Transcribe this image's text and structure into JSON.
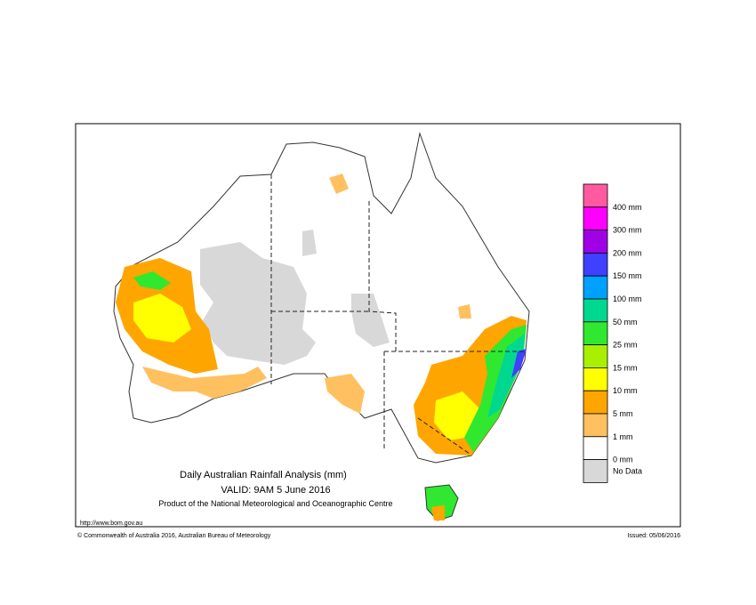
{
  "map": {
    "title": "Daily Australian Rainfall Analysis (mm)",
    "valid": "VALID: 9AM  5 June 2016",
    "product": "Product of the National Meteorological and Oceanographic Centre",
    "url": "http://www.bom.gov.au",
    "copyright": "© Commonwealth of Australia 2016, Australian Bureau of Meteorology",
    "issued": "Issued: 05/06/2016",
    "legend": {
      "colors": [
        "#ff5aa0",
        "#ff00ff",
        "#a000e6",
        "#4040ff",
        "#00a0ff",
        "#00d890",
        "#30e830",
        "#a8f000",
        "#ffff00",
        "#ffa500",
        "#ffc060",
        "#ffffff",
        "#d8d8d8"
      ],
      "labels": [
        "400 mm",
        "300 mm",
        "200 mm",
        "150 mm",
        "100 mm",
        "50 mm",
        "25 mm",
        "15 mm",
        "10 mm",
        "5 mm",
        "1 mm",
        "0 mm",
        "No Data"
      ]
    }
  }
}
